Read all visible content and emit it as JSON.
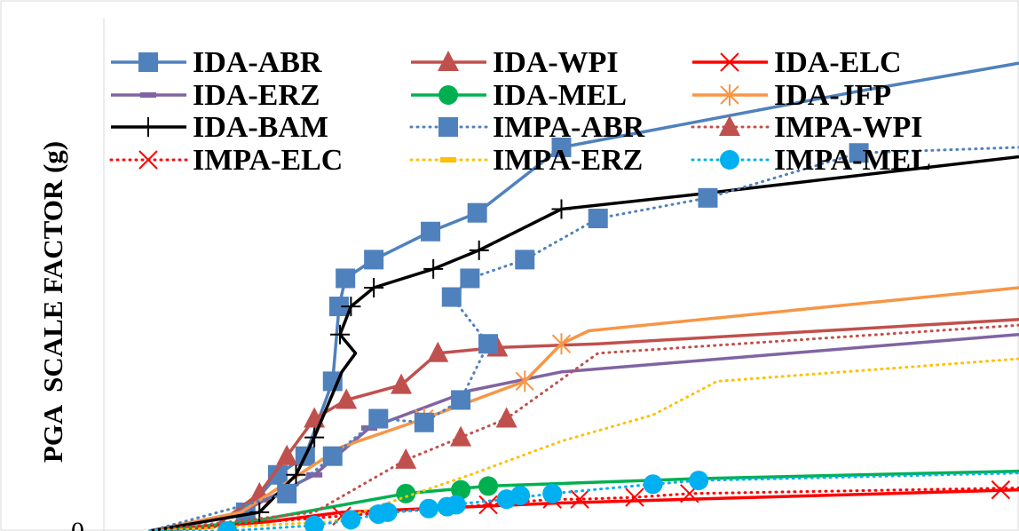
{
  "chart_data": {
    "type": "line",
    "ylabel": "PGA  SCALE FACTOR (g)",
    "xlabel": "",
    "y_ticks": [
      "0"
    ],
    "grid": false,
    "legend_placement": "top-left",
    "xlim": [
      0,
      1
    ],
    "ylim": [
      0,
      2.6
    ],
    "series": [
      {
        "name": "IDA-ABR",
        "color": "#4f81bd",
        "dash": "solid",
        "marker": "square",
        "points": [
          [
            0.05,
            0.0
          ],
          [
            0.155,
            0.1
          ],
          [
            0.19,
            0.3
          ],
          [
            0.22,
            0.4
          ],
          [
            0.25,
            0.8
          ],
          [
            0.257,
            1.2
          ],
          [
            0.264,
            1.35
          ],
          [
            0.295,
            1.45
          ],
          [
            0.357,
            1.6
          ],
          [
            0.408,
            1.7
          ],
          [
            0.5,
            2.05
          ],
          [
            0.825,
            2.35
          ],
          [
            1.0,
            2.5
          ]
        ],
        "marker_points": [
          [
            0.155,
            0.1
          ],
          [
            0.19,
            0.3
          ],
          [
            0.22,
            0.4
          ],
          [
            0.25,
            0.8
          ],
          [
            0.257,
            1.2
          ],
          [
            0.264,
            1.35
          ],
          [
            0.295,
            1.45
          ],
          [
            0.357,
            1.6
          ],
          [
            0.408,
            1.7
          ],
          [
            0.5,
            2.05
          ]
        ]
      },
      {
        "name": "IDA-WPI",
        "color": "#c0504d",
        "dash": "solid",
        "marker": "triangle",
        "points": [
          [
            0.05,
            0.0
          ],
          [
            0.12,
            0.02
          ],
          [
            0.17,
            0.2
          ],
          [
            0.2,
            0.4
          ],
          [
            0.23,
            0.6
          ],
          [
            0.265,
            0.7
          ],
          [
            0.325,
            0.78
          ],
          [
            0.365,
            0.95
          ],
          [
            0.43,
            0.98
          ],
          [
            0.54,
            1.0
          ],
          [
            1.0,
            1.13
          ]
        ],
        "marker_points": [
          [
            0.17,
            0.2
          ],
          [
            0.2,
            0.4
          ],
          [
            0.23,
            0.6
          ],
          [
            0.265,
            0.7
          ],
          [
            0.325,
            0.78
          ],
          [
            0.365,
            0.95
          ],
          [
            0.43,
            0.98
          ]
        ]
      },
      {
        "name": "IDA-ELC",
        "color": "#ff0000",
        "dash": "solid",
        "marker": "x",
        "points": [
          [
            0.05,
            0.0
          ],
          [
            0.18,
            0.05
          ],
          [
            0.26,
            0.1
          ],
          [
            0.5,
            0.15
          ],
          [
            1.0,
            0.22
          ]
        ],
        "marker_points": []
      },
      {
        "name": "IDA-ERZ",
        "color": "#8064a2",
        "dash": "solid",
        "marker": "dash",
        "points": [
          [
            0.05,
            0.0
          ],
          [
            0.15,
            0.1
          ],
          [
            0.23,
            0.3
          ],
          [
            0.29,
            0.55
          ],
          [
            0.4,
            0.75
          ],
          [
            0.5,
            0.85
          ],
          [
            1.0,
            1.05
          ]
        ],
        "marker_points": [
          [
            0.23,
            0.3
          ],
          [
            0.29,
            0.55
          ]
        ]
      },
      {
        "name": "IDA-MEL",
        "color": "#00b050",
        "dash": "solid",
        "marker": "circle",
        "points": [
          [
            0.05,
            0.0
          ],
          [
            0.16,
            0.05
          ],
          [
            0.33,
            0.2
          ],
          [
            0.42,
            0.24
          ],
          [
            0.65,
            0.28
          ],
          [
            1.0,
            0.32
          ]
        ],
        "marker_points": [
          [
            0.33,
            0.2
          ],
          [
            0.39,
            0.22
          ],
          [
            0.42,
            0.24
          ]
        ]
      },
      {
        "name": "IDA-JFP",
        "color": "#f79646",
        "dash": "solid",
        "marker": "asterisk",
        "points": [
          [
            0.05,
            0.0
          ],
          [
            0.15,
            0.1
          ],
          [
            0.26,
            0.45
          ],
          [
            0.35,
            0.6
          ],
          [
            0.46,
            0.8
          ],
          [
            0.5,
            1.0
          ],
          [
            0.53,
            1.07
          ],
          [
            1.0,
            1.3
          ]
        ],
        "marker_points": [
          [
            0.35,
            0.6
          ],
          [
            0.46,
            0.8
          ],
          [
            0.5,
            1.0
          ]
        ]
      },
      {
        "name": "IDA-BAM",
        "color": "#000000",
        "dash": "solid",
        "marker": "plus",
        "points": [
          [
            0.05,
            0.0
          ],
          [
            0.17,
            0.1
          ],
          [
            0.21,
            0.3
          ],
          [
            0.23,
            0.5
          ],
          [
            0.26,
            0.85
          ],
          [
            0.275,
            0.95
          ],
          [
            0.258,
            1.05
          ],
          [
            0.27,
            1.2
          ],
          [
            0.295,
            1.3
          ],
          [
            0.36,
            1.4
          ],
          [
            0.41,
            1.5
          ],
          [
            0.5,
            1.72
          ],
          [
            0.65,
            1.8
          ],
          [
            1.0,
            2.0
          ]
        ],
        "marker_points": [
          [
            0.17,
            0.1
          ],
          [
            0.21,
            0.3
          ],
          [
            0.23,
            0.5
          ],
          [
            0.258,
            1.05
          ],
          [
            0.27,
            1.2
          ],
          [
            0.295,
            1.3
          ],
          [
            0.36,
            1.4
          ],
          [
            0.41,
            1.5
          ],
          [
            0.5,
            1.72
          ]
        ]
      },
      {
        "name": "IMPA-ABR",
        "color": "#4f81bd",
        "dash": "dotted",
        "marker": "square",
        "points": [
          [
            0.05,
            0.0
          ],
          [
            0.2,
            0.2
          ],
          [
            0.25,
            0.4
          ],
          [
            0.3,
            0.6
          ],
          [
            0.35,
            0.58
          ],
          [
            0.39,
            0.7
          ],
          [
            0.42,
            1.0
          ],
          [
            0.38,
            1.25
          ],
          [
            0.4,
            1.35
          ],
          [
            0.46,
            1.45
          ],
          [
            0.54,
            1.67
          ],
          [
            0.66,
            1.78
          ],
          [
            0.825,
            2.02
          ],
          [
            1.0,
            2.05
          ]
        ],
        "marker_points": [
          [
            0.2,
            0.2
          ],
          [
            0.25,
            0.4
          ],
          [
            0.3,
            0.6
          ],
          [
            0.35,
            0.58
          ],
          [
            0.39,
            0.7
          ],
          [
            0.42,
            1.0
          ],
          [
            0.38,
            1.25
          ],
          [
            0.4,
            1.35
          ],
          [
            0.46,
            1.45
          ],
          [
            0.54,
            1.67
          ],
          [
            0.66,
            1.78
          ],
          [
            0.825,
            2.02
          ]
        ]
      },
      {
        "name": "IMPA-WPI",
        "color": "#c0504d",
        "dash": "dotted",
        "marker": "triangle",
        "points": [
          [
            0.05,
            0.0
          ],
          [
            0.23,
            0.1
          ],
          [
            0.33,
            0.38
          ],
          [
            0.39,
            0.5
          ],
          [
            0.44,
            0.6
          ],
          [
            0.54,
            0.95
          ],
          [
            1.0,
            1.1
          ]
        ],
        "marker_points": [
          [
            0.33,
            0.38
          ],
          [
            0.39,
            0.5
          ],
          [
            0.44,
            0.6
          ]
        ]
      },
      {
        "name": "IMPA-ELC",
        "color": "#ff0000",
        "dash": "dotted",
        "marker": "x",
        "points": [
          [
            0.05,
            0.0
          ],
          [
            0.26,
            0.08
          ],
          [
            0.42,
            0.14
          ],
          [
            0.49,
            0.17
          ],
          [
            0.52,
            0.17
          ],
          [
            0.58,
            0.18
          ],
          [
            0.64,
            0.2
          ],
          [
            1.0,
            0.23
          ]
        ],
        "marker_points": [
          [
            0.26,
            0.08
          ],
          [
            0.42,
            0.14
          ],
          [
            0.49,
            0.17
          ],
          [
            0.52,
            0.17
          ],
          [
            0.58,
            0.18
          ],
          [
            0.64,
            0.2
          ],
          [
            0.98,
            0.22
          ]
        ]
      },
      {
        "name": "IMPA-ERZ",
        "color": "#ffc000",
        "dash": "dotted",
        "marker": "dash",
        "points": [
          [
            0.05,
            0.0
          ],
          [
            0.25,
            0.05
          ],
          [
            0.4,
            0.3
          ],
          [
            0.5,
            0.48
          ],
          [
            0.6,
            0.62
          ],
          [
            0.67,
            0.8
          ],
          [
            1.0,
            0.92
          ]
        ],
        "marker_points": []
      },
      {
        "name": "IMPA-MEL",
        "color": "#00b0f0",
        "dash": "dotted",
        "marker": "circle",
        "points": [
          [
            0.05,
            0.0
          ],
          [
            0.135,
            0.0
          ],
          [
            0.23,
            0.03
          ],
          [
            0.27,
            0.06
          ],
          [
            0.3,
            0.09
          ],
          [
            0.355,
            0.12
          ],
          [
            0.38,
            0.14
          ],
          [
            0.44,
            0.17
          ],
          [
            0.49,
            0.2
          ],
          [
            0.6,
            0.25
          ],
          [
            0.65,
            0.27
          ],
          [
            1.0,
            0.31
          ]
        ],
        "marker_points": [
          [
            0.135,
            0.0
          ],
          [
            0.23,
            0.03
          ],
          [
            0.27,
            0.06
          ],
          [
            0.3,
            0.09
          ],
          [
            0.31,
            0.1
          ],
          [
            0.355,
            0.12
          ],
          [
            0.375,
            0.13
          ],
          [
            0.385,
            0.14
          ],
          [
            0.44,
            0.17
          ],
          [
            0.455,
            0.19
          ],
          [
            0.49,
            0.2
          ],
          [
            0.6,
            0.25
          ],
          [
            0.65,
            0.27
          ]
        ]
      }
    ]
  }
}
